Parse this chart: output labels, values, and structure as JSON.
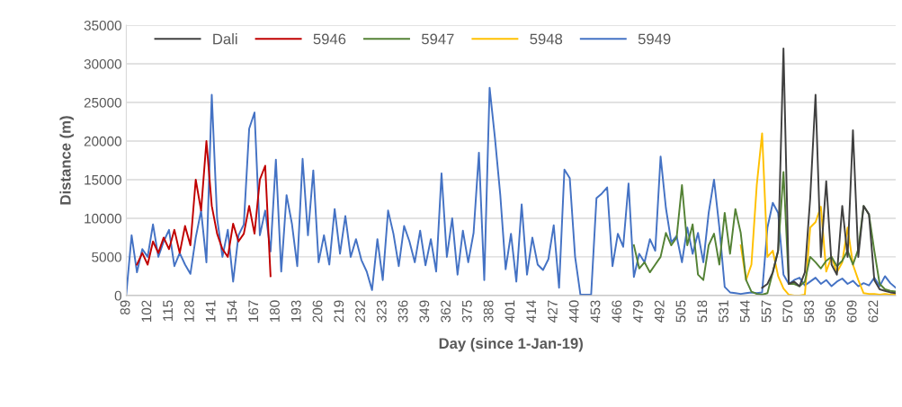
{
  "chart_data": {
    "type": "line",
    "xlabel": "Day (since 1-Jan-19)",
    "ylabel": "Distance (m)",
    "categories": [
      "89",
      null,
      null,
      null,
      "102",
      null,
      null,
      null,
      "115",
      null,
      null,
      null,
      "128",
      null,
      null,
      null,
      "141",
      null,
      null,
      null,
      "154",
      null,
      null,
      null,
      "167",
      null,
      null,
      null,
      "180",
      null,
      null,
      null,
      "193",
      null,
      null,
      null,
      "206",
      null,
      null,
      null,
      "219",
      null,
      null,
      null,
      "232",
      null,
      null,
      null,
      "323",
      null,
      null,
      null,
      "336",
      null,
      null,
      null,
      "349",
      null,
      null,
      null,
      "362",
      null,
      null,
      null,
      "375",
      null,
      null,
      null,
      "388",
      null,
      null,
      null,
      "401",
      null,
      null,
      null,
      "414",
      null,
      null,
      null,
      "427",
      null,
      null,
      null,
      "440",
      null,
      null,
      null,
      "453",
      null,
      null,
      null,
      "466",
      null,
      null,
      null,
      "479",
      null,
      null,
      null,
      "492",
      null,
      null,
      null,
      "505",
      null,
      null,
      null,
      "518",
      null,
      null,
      null,
      "531",
      null,
      null,
      null,
      "544",
      null,
      null,
      null,
      "557",
      null,
      null,
      null,
      "570",
      null,
      null,
      null,
      "583",
      null,
      null,
      null,
      "596",
      null,
      null,
      null,
      "609",
      null,
      null,
      null,
      "622",
      null,
      null,
      null,
      null
    ],
    "ylim": [
      0,
      35000
    ],
    "yticks": [
      0,
      5000,
      10000,
      15000,
      20000,
      25000,
      30000,
      35000
    ],
    "grid": "y",
    "legend": "top left",
    "series": [
      {
        "name": "Dali",
        "color": "#404040",
        "values": [
          null,
          null,
          null,
          null,
          null,
          null,
          null,
          null,
          null,
          null,
          null,
          null,
          null,
          null,
          null,
          null,
          null,
          null,
          null,
          null,
          null,
          null,
          null,
          null,
          null,
          null,
          null,
          null,
          null,
          null,
          null,
          null,
          null,
          null,
          null,
          null,
          null,
          null,
          null,
          null,
          null,
          null,
          null,
          null,
          null,
          null,
          null,
          null,
          null,
          null,
          null,
          null,
          null,
          null,
          null,
          null,
          null,
          null,
          null,
          null,
          null,
          null,
          null,
          null,
          null,
          null,
          null,
          null,
          null,
          null,
          null,
          null,
          null,
          null,
          null,
          null,
          null,
          null,
          null,
          null,
          null,
          null,
          null,
          null,
          null,
          null,
          null,
          null,
          null,
          null,
          null,
          null,
          null,
          null,
          null,
          null,
          null,
          null,
          null,
          null,
          null,
          null,
          null,
          null,
          null,
          null,
          null,
          null,
          null,
          null,
          null,
          null,
          null,
          null,
          null,
          null,
          null,
          null,
          null,
          1000,
          1500,
          3000,
          5800,
          32000,
          1500,
          1800,
          1200,
          3000,
          12600,
          26000,
          5000,
          14800,
          4000,
          2700,
          11600,
          5000,
          21400,
          5000,
          11600,
          10500,
          2000,
          800,
          600,
          400,
          300
        ]
      },
      {
        "name": "5946",
        "color": "#c00000",
        "values": [
          null,
          null,
          4000,
          5500,
          4000,
          7000,
          5500,
          7500,
          6000,
          8500,
          5500,
          9000,
          6500,
          15000,
          11000,
          20000,
          11600,
          8000,
          6000,
          5000,
          9300,
          7000,
          8000,
          11600,
          8000,
          15000,
          16800,
          2500,
          null,
          null,
          null,
          null,
          null,
          null,
          null,
          null,
          null,
          null,
          null,
          null,
          null,
          null,
          null,
          null,
          null,
          null,
          null,
          null,
          null,
          null,
          null,
          null,
          null,
          null,
          null,
          null,
          null,
          null,
          null,
          null,
          null,
          null,
          null,
          null,
          null,
          null,
          null,
          null,
          null,
          null,
          null,
          null,
          null,
          null,
          null,
          null,
          null,
          null,
          null,
          null,
          null,
          null,
          null,
          null,
          null,
          null,
          null,
          null,
          null,
          null,
          null,
          null,
          null,
          null,
          null,
          null,
          null,
          null,
          null,
          null,
          null,
          null,
          null,
          null,
          null,
          null,
          null,
          null,
          null,
          null,
          null,
          null,
          null,
          null,
          null,
          null,
          null,
          null,
          null,
          null,
          null,
          null,
          null,
          null,
          null,
          null,
          null,
          null,
          null,
          null,
          null,
          null,
          null,
          null,
          null,
          null,
          null,
          null,
          null,
          null,
          null,
          null,
          null,
          null,
          null
        ]
      },
      {
        "name": "5947",
        "color": "#548235",
        "values": [
          null,
          null,
          null,
          null,
          null,
          null,
          null,
          null,
          null,
          null,
          null,
          null,
          null,
          null,
          null,
          null,
          null,
          null,
          null,
          null,
          null,
          null,
          null,
          null,
          null,
          null,
          null,
          null,
          null,
          null,
          null,
          null,
          null,
          null,
          null,
          null,
          null,
          null,
          null,
          null,
          null,
          null,
          null,
          null,
          null,
          null,
          null,
          null,
          null,
          null,
          null,
          null,
          null,
          null,
          null,
          null,
          null,
          null,
          null,
          null,
          null,
          null,
          null,
          null,
          null,
          null,
          null,
          null,
          null,
          null,
          null,
          null,
          null,
          null,
          null,
          null,
          null,
          null,
          null,
          null,
          null,
          null,
          null,
          null,
          null,
          null,
          null,
          null,
          null,
          null,
          null,
          null,
          null,
          null,
          null,
          6500,
          3500,
          4300,
          3000,
          4000,
          5000,
          8100,
          6500,
          7500,
          14300,
          6500,
          9200,
          2700,
          2000,
          6500,
          8000,
          4000,
          10700,
          5400,
          11200,
          8100,
          2000,
          500,
          200,
          100,
          300,
          3000,
          5800,
          16000,
          1500,
          1500,
          1200,
          1800,
          5000,
          4300,
          3500,
          4500,
          5000,
          3800,
          4500,
          5800,
          4000,
          6000,
          11600,
          10500,
          5800,
          1500,
          800,
          600,
          500
        ]
      },
      {
        "name": "5948",
        "color": "#ffc000",
        "values": [
          null,
          null,
          null,
          null,
          null,
          null,
          null,
          null,
          null,
          null,
          null,
          null,
          null,
          null,
          null,
          null,
          null,
          null,
          null,
          null,
          null,
          null,
          null,
          null,
          null,
          null,
          null,
          null,
          null,
          null,
          null,
          null,
          null,
          null,
          null,
          null,
          null,
          null,
          null,
          null,
          null,
          null,
          null,
          null,
          null,
          null,
          null,
          null,
          null,
          null,
          null,
          null,
          null,
          null,
          null,
          null,
          null,
          null,
          null,
          null,
          null,
          null,
          null,
          null,
          null,
          null,
          null,
          null,
          null,
          null,
          null,
          null,
          null,
          null,
          null,
          null,
          null,
          null,
          null,
          null,
          null,
          null,
          null,
          null,
          null,
          null,
          null,
          null,
          null,
          null,
          null,
          null,
          null,
          null,
          null,
          null,
          null,
          null,
          null,
          null,
          null,
          null,
          null,
          null,
          null,
          null,
          null,
          null,
          null,
          null,
          null,
          null,
          null,
          null,
          null,
          6500,
          2000,
          4000,
          14300,
          21000,
          5000,
          5800,
          2500,
          900,
          100,
          0,
          0,
          100,
          8800,
          9500,
          11500,
          3100,
          5000,
          3000,
          4300,
          8800,
          4000,
          2000,
          300,
          200,
          200,
          100,
          200,
          100,
          100
        ]
      },
      {
        "name": "5949",
        "color": "#4472c4",
        "values": [
          200,
          7800,
          3000,
          6000,
          5000,
          9200,
          5000,
          7000,
          8500,
          3800,
          5500,
          4000,
          2800,
          7500,
          11000,
          4300,
          26000,
          10000,
          5000,
          8500,
          1800,
          7800,
          9200,
          21600,
          23700,
          7800,
          11000,
          5700,
          17600,
          3100,
          13000,
          9300,
          3800,
          17700,
          7800,
          16200,
          4300,
          7800,
          4000,
          11200,
          5400,
          10300,
          5000,
          7300,
          4600,
          3100,
          700,
          7300,
          2000,
          11000,
          8000,
          3800,
          9000,
          7000,
          4300,
          8400,
          3900,
          7300,
          3100,
          15800,
          5000,
          10000,
          2700,
          8400,
          4300,
          8100,
          18500,
          2000,
          26900,
          20400,
          13000,
          3400,
          8000,
          1800,
          11800,
          2700,
          7500,
          4000,
          3300,
          4700,
          9100,
          1000,
          16300,
          15200,
          5000,
          100,
          100,
          100,
          12600,
          13200,
          14000,
          3800,
          8000,
          6300,
          14500,
          2400,
          5400,
          4300,
          7300,
          5800,
          18000,
          11300,
          6900,
          7700,
          4300,
          8800,
          5400,
          8100,
          4300,
          10700,
          15000,
          8800,
          1100,
          400,
          300,
          200,
          300,
          400,
          300,
          400,
          8800,
          12000,
          10700,
          2700,
          1500,
          2000,
          2300,
          1300,
          1800,
          2300,
          1500,
          2000,
          1200,
          1800,
          2200,
          1500,
          1900,
          1200,
          1600,
          1300,
          2300,
          1200,
          2500,
          1600,
          1000
        ]
      }
    ]
  }
}
